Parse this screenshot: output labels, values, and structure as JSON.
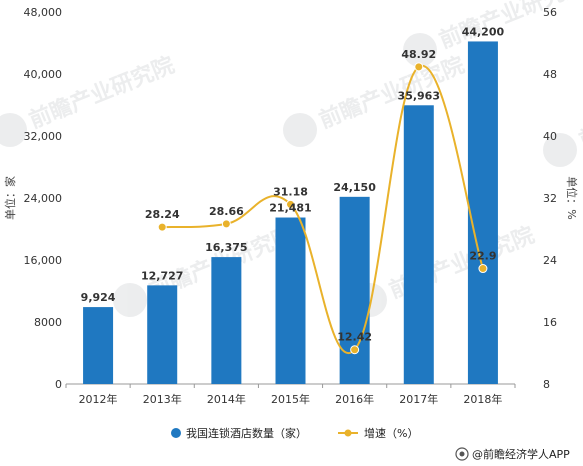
{
  "chart_data": {
    "type": "bar",
    "categories": [
      "2012年",
      "2013年",
      "2014年",
      "2015年",
      "2016年",
      "2017年",
      "2018年"
    ],
    "series": [
      {
        "name": "我国连锁酒店数量（家）",
        "type": "bar",
        "axis": "left",
        "values": [
          9924,
          12727,
          16375,
          21481,
          24150,
          35963,
          44200
        ],
        "labels": [
          "9,924",
          "12,727",
          "16,375",
          "21,481",
          "24,150",
          "35,963",
          "44,200"
        ]
      },
      {
        "name": "增速（%）",
        "type": "line",
        "axis": "right",
        "values": [
          null,
          28.24,
          28.66,
          31.18,
          12.42,
          48.92,
          22.9
        ],
        "labels": [
          "",
          "28.24",
          "28.66",
          "31.18",
          "12.42",
          "48.92",
          "22.9"
        ]
      }
    ],
    "y_left": {
      "label": "单位：家",
      "ylim": [
        0,
        48000
      ],
      "ticks": [
        0,
        8000,
        16000,
        24000,
        32000,
        40000,
        48000
      ],
      "tick_labels": [
        "0",
        "8000",
        "16,000",
        "24,000",
        "32,000",
        "40,000",
        "48,000"
      ]
    },
    "y_right": {
      "label": "单位：%",
      "ylim": [
        8,
        56
      ],
      "ticks": [
        8,
        16,
        24,
        32,
        40,
        48,
        56
      ],
      "tick_labels": [
        "8",
        "16",
        "24",
        "32",
        "40",
        "48",
        "56"
      ]
    },
    "grid": false,
    "legend": "bottom-center",
    "colors": {
      "bar": "#1f78c1",
      "line": "#e9b22b"
    }
  },
  "footer": {
    "source": "@前瞻经济学人APP"
  },
  "watermark": {
    "text": "前瞻产业研究院"
  }
}
